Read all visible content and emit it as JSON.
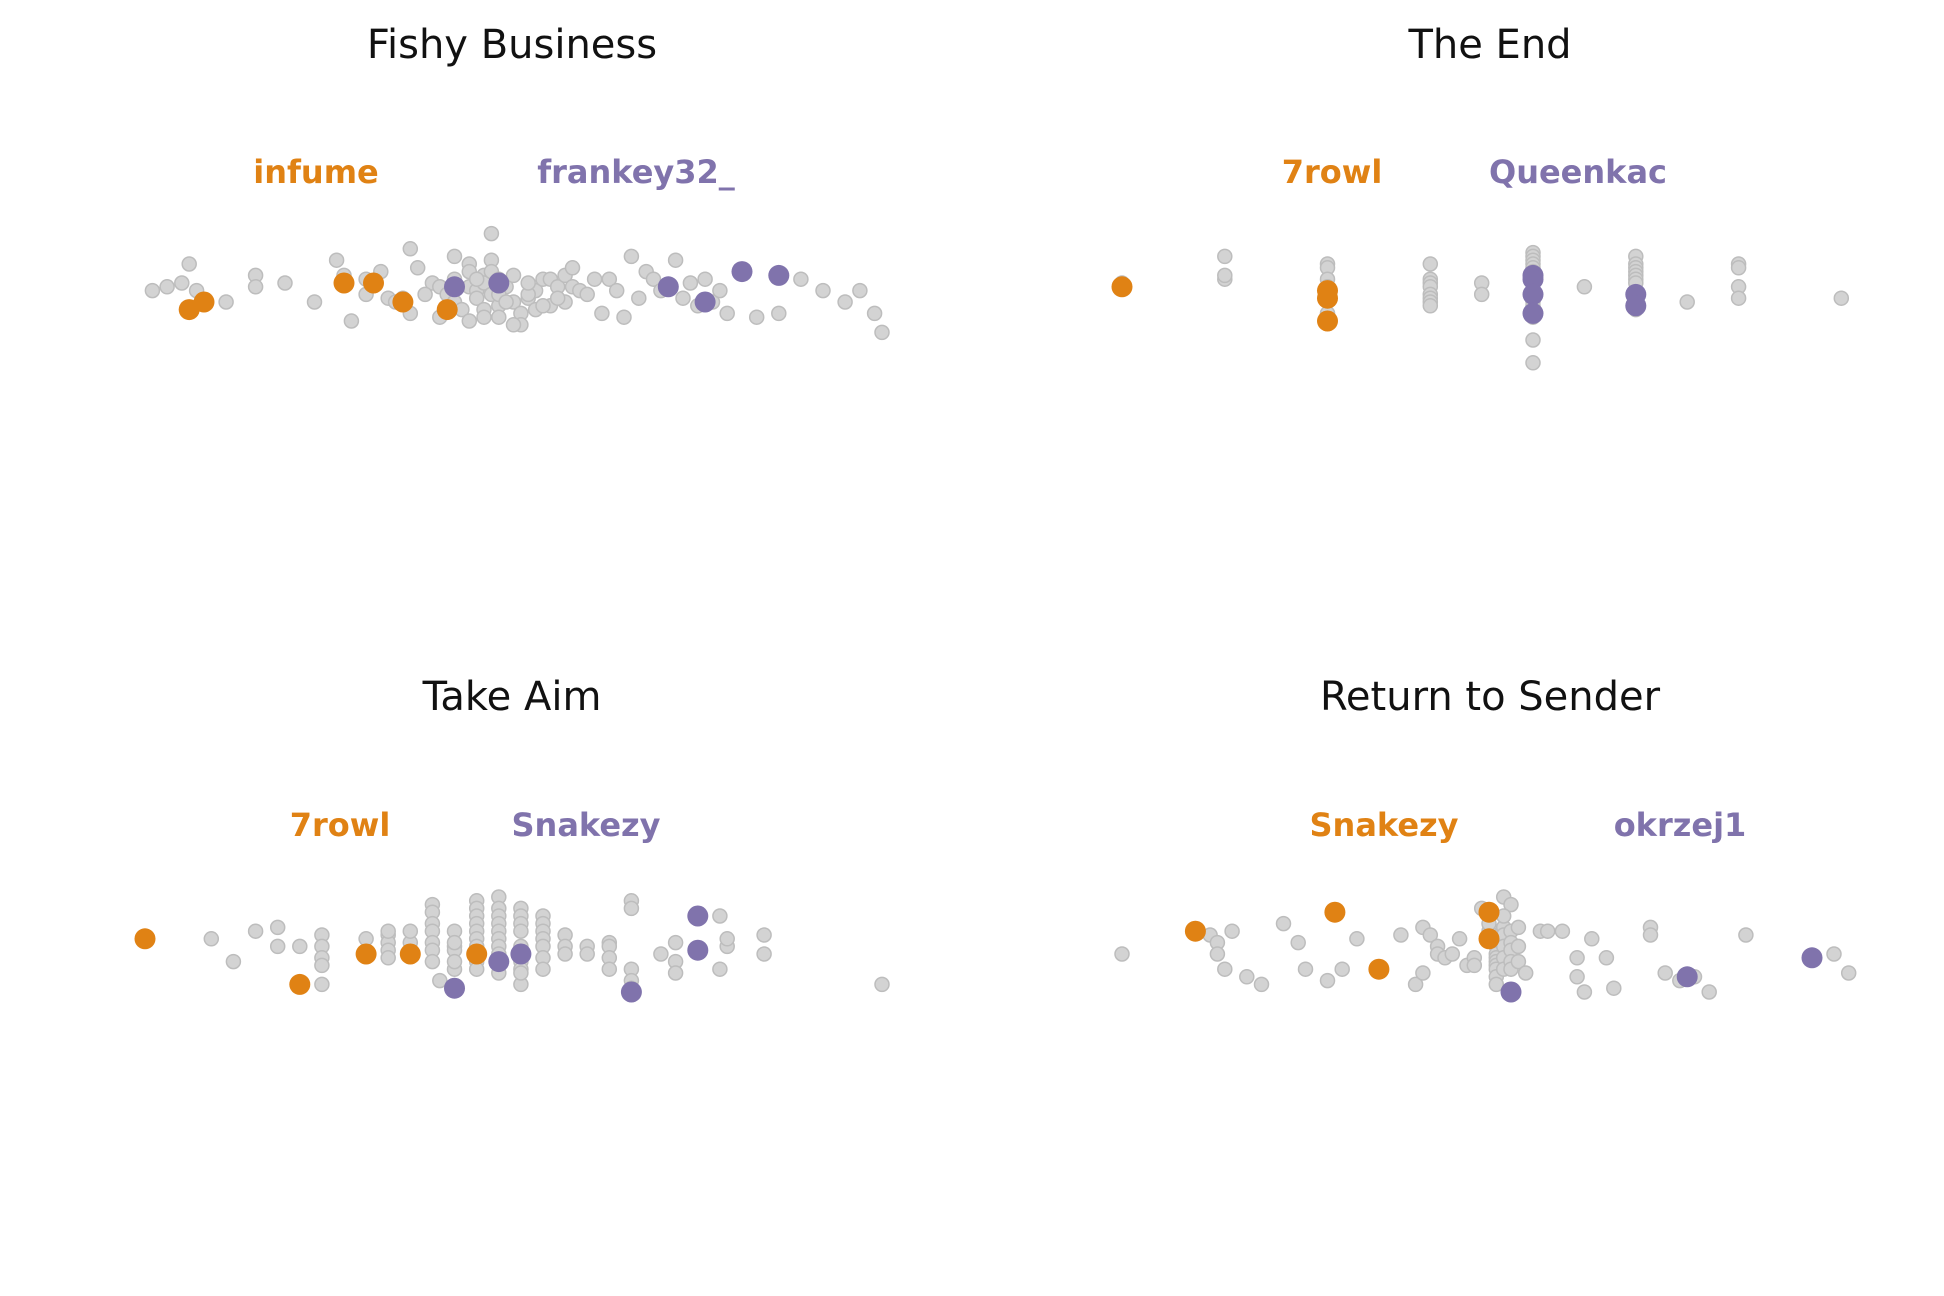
{
  "colors": {
    "player_a": "#E08214",
    "player_b": "#8073AC",
    "other": "#D3D3D3",
    "other_stroke": "#BDBDBD"
  },
  "chart_data": [
    {
      "type": "scatter",
      "title": "Fishy Business",
      "player_a": "infume",
      "player_b": "frankey32_",
      "xlim": [
        0,
        100
      ],
      "ylim": [
        0,
        100
      ],
      "grid": false,
      "other_points": [
        [
          1,
          63
        ],
        [
          3,
          64
        ],
        [
          6,
          70
        ],
        [
          5,
          65
        ],
        [
          7,
          63
        ],
        [
          11,
          60
        ],
        [
          15,
          67
        ],
        [
          15,
          64
        ],
        [
          19,
          65
        ],
        [
          23,
          60
        ],
        [
          26,
          71
        ],
        [
          27,
          67
        ],
        [
          30,
          66
        ],
        [
          32,
          68
        ],
        [
          33,
          61
        ],
        [
          35,
          61
        ],
        [
          36,
          74
        ],
        [
          37,
          69
        ],
        [
          39,
          65
        ],
        [
          40,
          64
        ],
        [
          41,
          62
        ],
        [
          42,
          60
        ],
        [
          43,
          58
        ],
        [
          44,
          70
        ],
        [
          44,
          64
        ],
        [
          45,
          63
        ],
        [
          45,
          61
        ],
        [
          46,
          67
        ],
        [
          46,
          65
        ],
        [
          47,
          71
        ],
        [
          47,
          68
        ],
        [
          47,
          62
        ],
        [
          48,
          66
        ],
        [
          48,
          64
        ],
        [
          48,
          59
        ],
        [
          49,
          64
        ],
        [
          50,
          60
        ],
        [
          50,
          67
        ],
        [
          51,
          57
        ],
        [
          51,
          54
        ],
        [
          52,
          61
        ],
        [
          53,
          63
        ],
        [
          54,
          66
        ],
        [
          55,
          66
        ],
        [
          56,
          64
        ],
        [
          57,
          67
        ],
        [
          58,
          64
        ],
        [
          58,
          69
        ],
        [
          59,
          63
        ],
        [
          60,
          62
        ],
        [
          61,
          66
        ],
        [
          62,
          57
        ],
        [
          63,
          66
        ],
        [
          64,
          63
        ],
        [
          65,
          56
        ],
        [
          66,
          72
        ],
        [
          67,
          61
        ],
        [
          68,
          68
        ],
        [
          69,
          66
        ],
        [
          70,
          63
        ],
        [
          72,
          71
        ],
        [
          73,
          61
        ],
        [
          74,
          65
        ],
        [
          75,
          59
        ],
        [
          76,
          66
        ],
        [
          77,
          60
        ],
        [
          78,
          63
        ],
        [
          79,
          57
        ],
        [
          83,
          56
        ],
        [
          86,
          57
        ],
        [
          89,
          66
        ],
        [
          92,
          63
        ],
        [
          95,
          60
        ],
        [
          97,
          63
        ],
        [
          99,
          57
        ],
        [
          100,
          52
        ],
        [
          47,
          78
        ],
        [
          42,
          72
        ],
        [
          44,
          55
        ],
        [
          40,
          56
        ],
        [
          36,
          57
        ],
        [
          34,
          60
        ],
        [
          52,
          62
        ],
        [
          53,
          58
        ],
        [
          55,
          59
        ],
        [
          57,
          60
        ],
        [
          38,
          62
        ],
        [
          46,
          58
        ],
        [
          48,
          56
        ],
        [
          50,
          54
        ],
        [
          52,
          65
        ],
        [
          54,
          59
        ],
        [
          56,
          61
        ],
        [
          28,
          55
        ],
        [
          30,
          62
        ],
        [
          42,
          66
        ],
        [
          44,
          68
        ],
        [
          45,
          66
        ],
        [
          46,
          56
        ],
        [
          48,
          62
        ],
        [
          49,
          60
        ]
      ],
      "player_a_points": [
        [
          6,
          58
        ],
        [
          8,
          60
        ],
        [
          27,
          65
        ],
        [
          31,
          65
        ],
        [
          35,
          60
        ],
        [
          41,
          58
        ]
      ],
      "player_b_points": [
        [
          42,
          64
        ],
        [
          48,
          65
        ],
        [
          71,
          64
        ],
        [
          76,
          60
        ],
        [
          81,
          68
        ],
        [
          86,
          67
        ]
      ]
    },
    {
      "type": "scatter",
      "title": "The End",
      "player_a": "7rowl",
      "player_b": "Queenkac",
      "xlim": [
        0,
        100
      ],
      "ylim": [
        0,
        100
      ],
      "grid": false,
      "other_points": [
        [
          14,
          72
        ],
        [
          14,
          66
        ],
        [
          14,
          67
        ],
        [
          28,
          70
        ],
        [
          28,
          69
        ],
        [
          28,
          66
        ],
        [
          28,
          64
        ],
        [
          28,
          63
        ],
        [
          28,
          61
        ],
        [
          28,
          57
        ],
        [
          42,
          70
        ],
        [
          42,
          66
        ],
        [
          42,
          65
        ],
        [
          42,
          64
        ],
        [
          42,
          62
        ],
        [
          42,
          61
        ],
        [
          42,
          60
        ],
        [
          42,
          59
        ],
        [
          49,
          65
        ],
        [
          49,
          62
        ],
        [
          56,
          73
        ],
        [
          56,
          72
        ],
        [
          56,
          71
        ],
        [
          56,
          70
        ],
        [
          56,
          69
        ],
        [
          56,
          68
        ],
        [
          56,
          67
        ],
        [
          56,
          66
        ],
        [
          56,
          65
        ],
        [
          56,
          63
        ],
        [
          56,
          62
        ],
        [
          56,
          61
        ],
        [
          56,
          60
        ],
        [
          56,
          59
        ],
        [
          56,
          58
        ],
        [
          56,
          56
        ],
        [
          56,
          50
        ],
        [
          63,
          64
        ],
        [
          70,
          72
        ],
        [
          70,
          70
        ],
        [
          70,
          69
        ],
        [
          70,
          68
        ],
        [
          70,
          67
        ],
        [
          70,
          66
        ],
        [
          70,
          65
        ],
        [
          70,
          62
        ],
        [
          70,
          61
        ],
        [
          70,
          60
        ],
        [
          70,
          58
        ],
        [
          77,
          60
        ],
        [
          84,
          70
        ],
        [
          84,
          69
        ],
        [
          84,
          64
        ],
        [
          84,
          61
        ],
        [
          98,
          61
        ],
        [
          0,
          65
        ],
        [
          56,
          44
        ]
      ],
      "player_a_points": [
        [
          0,
          64
        ],
        [
          28,
          63
        ],
        [
          28,
          61
        ],
        [
          28,
          55
        ]
      ],
      "player_b_points": [
        [
          56,
          67
        ],
        [
          56,
          66
        ],
        [
          56,
          62
        ],
        [
          56,
          57
        ],
        [
          70,
          62
        ],
        [
          70,
          59
        ]
      ]
    },
    {
      "type": "scatter",
      "title": "Take Aim",
      "player_a": "7rowl",
      "player_b": "Snakezy",
      "xlim": [
        0,
        100
      ],
      "ylim": [
        0,
        100
      ],
      "grid": false,
      "other_points": [
        [
          9,
          64
        ],
        [
          12,
          58
        ],
        [
          15,
          66
        ],
        [
          18,
          67
        ],
        [
          18,
          62
        ],
        [
          21,
          62
        ],
        [
          24,
          65
        ],
        [
          24,
          62
        ],
        [
          24,
          59
        ],
        [
          24,
          57
        ],
        [
          30,
          64
        ],
        [
          33,
          65
        ],
        [
          33,
          63
        ],
        [
          33,
          61
        ],
        [
          33,
          59
        ],
        [
          39,
          73
        ],
        [
          39,
          71
        ],
        [
          39,
          68
        ],
        [
          39,
          66
        ],
        [
          39,
          63
        ],
        [
          39,
          61
        ],
        [
          39,
          58
        ],
        [
          42,
          66
        ],
        [
          42,
          62
        ],
        [
          42,
          61
        ],
        [
          42,
          56
        ],
        [
          45,
          74
        ],
        [
          45,
          72
        ],
        [
          45,
          70
        ],
        [
          45,
          68
        ],
        [
          45,
          66
        ],
        [
          45,
          64
        ],
        [
          45,
          62
        ],
        [
          45,
          60
        ],
        [
          45,
          58
        ],
        [
          48,
          75
        ],
        [
          48,
          72
        ],
        [
          48,
          70
        ],
        [
          48,
          68
        ],
        [
          48,
          66
        ],
        [
          48,
          64
        ],
        [
          48,
          62
        ],
        [
          48,
          60
        ],
        [
          48,
          57
        ],
        [
          51,
          72
        ],
        [
          51,
          70
        ],
        [
          51,
          68
        ],
        [
          51,
          66
        ],
        [
          51,
          62
        ],
        [
          51,
          60
        ],
        [
          51,
          58
        ],
        [
          51,
          56
        ],
        [
          54,
          70
        ],
        [
          54,
          68
        ],
        [
          54,
          66
        ],
        [
          54,
          64
        ],
        [
          54,
          62
        ],
        [
          54,
          59
        ],
        [
          54,
          56
        ],
        [
          57,
          65
        ],
        [
          57,
          62
        ],
        [
          57,
          60
        ],
        [
          63,
          63
        ],
        [
          63,
          62
        ],
        [
          63,
          59
        ],
        [
          63,
          56
        ],
        [
          66,
          56
        ],
        [
          66,
          53
        ],
        [
          66,
          51
        ],
        [
          70,
          60
        ],
        [
          72,
          63
        ],
        [
          72,
          58
        ],
        [
          72,
          55
        ],
        [
          78,
          70
        ],
        [
          79,
          62
        ],
        [
          79,
          64
        ],
        [
          84,
          65
        ],
        [
          84,
          60
        ],
        [
          78,
          56
        ],
        [
          100,
          52
        ],
        [
          24,
          52
        ],
        [
          40,
          53
        ],
        [
          42,
          58
        ],
        [
          42,
          63
        ],
        [
          45,
          56
        ],
        [
          48,
          55
        ],
        [
          51,
          52
        ],
        [
          51,
          55
        ],
        [
          60,
          62
        ],
        [
          60,
          60
        ],
        [
          66,
          74
        ],
        [
          66,
          72
        ],
        [
          36,
          63
        ],
        [
          33,
          66
        ],
        [
          36,
          66
        ]
      ],
      "player_a_points": [
        [
          0,
          64
        ],
        [
          21,
          52
        ],
        [
          30,
          60
        ],
        [
          36,
          60
        ],
        [
          45,
          60
        ]
      ],
      "player_b_points": [
        [
          42,
          51
        ],
        [
          48,
          58
        ],
        [
          51,
          60
        ],
        [
          66,
          50
        ],
        [
          75,
          70
        ],
        [
          75,
          61
        ]
      ]
    },
    {
      "type": "scatter",
      "title": "Return to Sender",
      "player_a": "Snakezy",
      "player_b": "okrzej1",
      "xlim": [
        0,
        100
      ],
      "ylim": [
        0,
        100
      ],
      "grid": false,
      "other_points": [
        [
          0,
          60
        ],
        [
          12,
          65
        ],
        [
          13,
          63
        ],
        [
          13,
          60
        ],
        [
          14,
          56
        ],
        [
          15,
          66
        ],
        [
          17,
          54
        ],
        [
          19,
          52
        ],
        [
          22,
          68
        ],
        [
          24,
          63
        ],
        [
          25,
          56
        ],
        [
          28,
          53
        ],
        [
          30,
          56
        ],
        [
          32,
          64
        ],
        [
          38,
          65
        ],
        [
          40,
          52
        ],
        [
          41,
          55
        ],
        [
          41,
          67
        ],
        [
          42,
          65
        ],
        [
          43,
          62
        ],
        [
          43,
          60
        ],
        [
          44,
          59
        ],
        [
          45,
          60
        ],
        [
          46,
          64
        ],
        [
          47,
          57
        ],
        [
          48,
          59
        ],
        [
          50,
          66
        ],
        [
          50,
          65
        ],
        [
          51,
          63
        ],
        [
          51,
          62
        ],
        [
          51,
          60
        ],
        [
          51,
          59
        ],
        [
          51,
          58
        ],
        [
          51,
          57
        ],
        [
          51,
          56
        ],
        [
          51,
          54
        ],
        [
          51,
          52
        ],
        [
          52,
          75
        ],
        [
          52,
          67
        ],
        [
          52,
          65
        ],
        [
          52,
          62
        ],
        [
          52,
          59
        ],
        [
          52,
          56
        ],
        [
          53,
          73
        ],
        [
          53,
          66
        ],
        [
          53,
          63
        ],
        [
          53,
          61
        ],
        [
          53,
          58
        ],
        [
          53,
          56
        ],
        [
          54,
          67
        ],
        [
          54,
          62
        ],
        [
          54,
          58
        ],
        [
          55,
          55
        ],
        [
          57,
          66
        ],
        [
          58,
          66
        ],
        [
          60,
          66
        ],
        [
          62,
          59
        ],
        [
          62,
          54
        ],
        [
          63,
          50
        ],
        [
          64,
          64
        ],
        [
          66,
          59
        ],
        [
          67,
          51
        ],
        [
          72,
          67
        ],
        [
          72,
          65
        ],
        [
          74,
          55
        ],
        [
          76,
          53
        ],
        [
          78,
          54
        ],
        [
          80,
          50
        ],
        [
          85,
          65
        ],
        [
          97,
          60
        ],
        [
          99,
          55
        ],
        [
          50,
          68
        ],
        [
          48,
          57
        ],
        [
          52,
          70
        ],
        [
          49,
          72
        ]
      ],
      "player_a_points": [
        [
          10,
          66
        ],
        [
          29,
          71
        ],
        [
          35,
          56
        ],
        [
          50,
          71
        ],
        [
          50,
          64
        ]
      ],
      "player_b_points": [
        [
          53,
          50
        ],
        [
          77,
          54
        ],
        [
          94,
          59
        ]
      ]
    }
  ]
}
